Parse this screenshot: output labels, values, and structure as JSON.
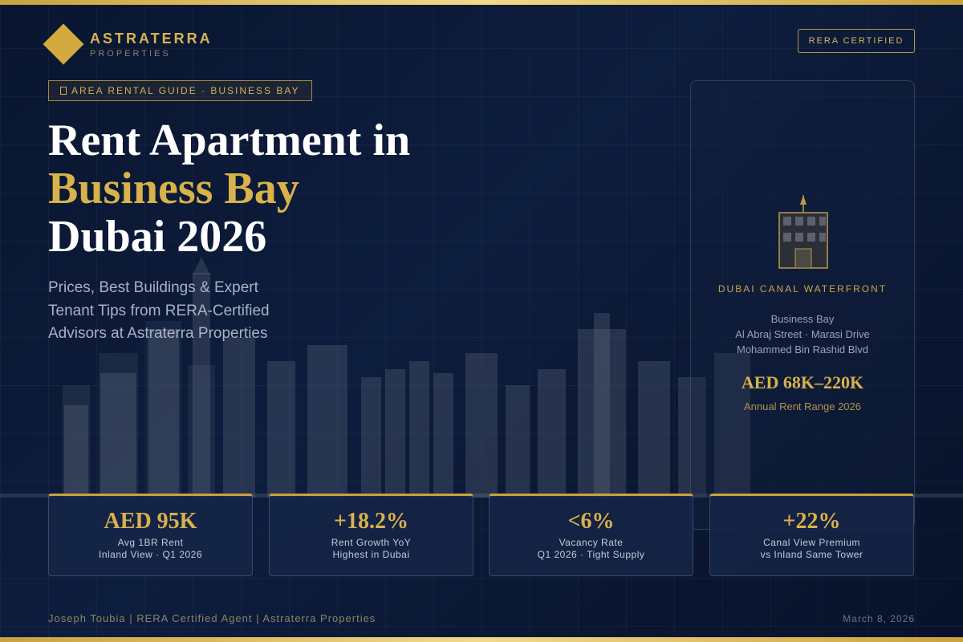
{
  "brand": {
    "name": "ASTRATERRA",
    "subtitle": "PROPERTIES",
    "badge": "RERA CERTIFIED"
  },
  "tag": "AREA RENTAL GUIDE · BUSINESS BAY",
  "headline": {
    "line1": "Rent Apartment in",
    "line2": "Business Bay",
    "line3": "Dubai 2026"
  },
  "subtitle": {
    "line1": "Prices, Best Buildings & Expert",
    "line2": "Tenant Tips from RERA-Certified",
    "line3": "Advisors at Astraterra Properties"
  },
  "card": {
    "icon": "building-icon",
    "location_title": "DUBAI CANAL WATERFRONT",
    "addr1": "Business Bay",
    "addr2": "Al Abraj Street · Marasi Drive",
    "addr3": "Mohammed Bin Rashid Blvd",
    "price": "AED 68K–220K",
    "price_caption": "Annual Rent Range 2026"
  },
  "stats": [
    {
      "value": "AED 95K",
      "label1": "Avg 1BR Rent",
      "label2": "Inland View · Q1 2026"
    },
    {
      "value": "+18.2%",
      "label1": "Rent Growth YoY",
      "label2": "Highest in Dubai"
    },
    {
      "value": "<6%",
      "label1": "Vacancy Rate",
      "label2": "Q1 2026 · Tight Supply"
    },
    {
      "value": "+22%",
      "label1": "Canal View Premium",
      "label2": "vs Inland Same Tower"
    }
  ],
  "footer": {
    "left": "Joseph Toubia | RERA Certified Agent | Astraterra Properties",
    "right": "March 8, 2026"
  },
  "colors": {
    "gold": "#d8b24a",
    "background": "#0d1d3d",
    "text": "#ffffff"
  }
}
